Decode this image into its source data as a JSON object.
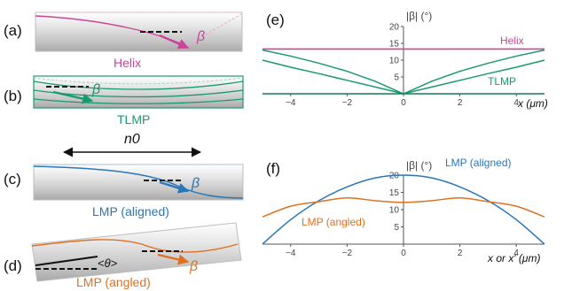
{
  "panel_labels": {
    "a": "(a)",
    "b": "(b)",
    "c": "(c)",
    "d": "(d)",
    "e": "(e)",
    "f": "(f)"
  },
  "left": {
    "helix_label": "Helix",
    "tlmp_label": "TLMP",
    "n0_label": "n0",
    "lmp_aligned_label": "LMP (aligned)",
    "lmp_angled_label": "LMP (angled)",
    "beta_symbol": "β",
    "theta_label": "<θ>"
  },
  "colors": {
    "helix": "#cc4499",
    "tlmp": "#1a9a6c",
    "lmp_aligned": "#2a76b8",
    "lmp_angled": "#e07020",
    "axis": "#555555",
    "tick_label": "#444444"
  },
  "chart_data": [
    {
      "type": "line",
      "panel": "(e)",
      "ylabel": "|β| (°)",
      "xlabel": "x (μm)",
      "xlim": [
        -5,
        5
      ],
      "ylim": [
        0,
        20
      ],
      "xticks": [
        -4,
        -2,
        0,
        2,
        4
      ],
      "yticks": [
        0,
        5,
        10,
        15,
        20
      ],
      "grid": false,
      "series": [
        {
          "name": "Helix",
          "color": "#cc4499",
          "x": [
            -5,
            -4,
            -3,
            -2,
            -1,
            0,
            1,
            2,
            3,
            4,
            5
          ],
          "y": [
            13.3,
            13.3,
            13.3,
            13.3,
            13.3,
            13.3,
            13.3,
            13.3,
            13.3,
            13.3,
            13.3
          ]
        },
        {
          "name": "TLMP",
          "color": "#1a9a6c",
          "x": [
            -5,
            -4,
            -3,
            -2,
            -1,
            0,
            1,
            2,
            3,
            4,
            5
          ],
          "y": [
            13.0,
            11.2,
            9.1,
            6.7,
            3.7,
            0,
            3.7,
            6.7,
            9.1,
            11.2,
            13.0
          ]
        },
        {
          "name": "",
          "color": "#1a9a6c",
          "x": [
            -5,
            -4,
            -3,
            -2,
            -1,
            0,
            1,
            2,
            3,
            4,
            5
          ],
          "y": [
            10.0,
            7.9,
            6.0,
            4.0,
            2.0,
            0,
            2.0,
            4.0,
            6.0,
            7.9,
            10.0
          ]
        },
        {
          "name": "",
          "color": "#137a55",
          "x": [
            -5,
            -4,
            -3,
            -2,
            -1,
            0,
            1,
            2,
            3,
            4,
            5
          ],
          "y": [
            0,
            0,
            0,
            0,
            0,
            0,
            0,
            0,
            0,
            0,
            0
          ]
        }
      ]
    },
    {
      "type": "line",
      "panel": "(f)",
      "ylabel": "|β| (°)",
      "xlabel": "x or x′ (μm)",
      "xlim": [
        -5,
        5
      ],
      "ylim": [
        0,
        20
      ],
      "xticks": [
        -4,
        -2,
        0,
        2,
        4
      ],
      "yticks": [
        0,
        5,
        10,
        15,
        20
      ],
      "grid": false,
      "series": [
        {
          "name": "LMP (aligned)",
          "color": "#2a76b8",
          "x": [
            -5,
            -4,
            -3,
            -2,
            -1,
            0,
            1,
            2,
            3,
            4,
            5
          ],
          "y": [
            0,
            7.1,
            12.6,
            16.6,
            19.2,
            20.0,
            19.2,
            16.6,
            12.6,
            7.1,
            0
          ]
        },
        {
          "name": "LMP (angled)",
          "color": "#e07020",
          "x": [
            -5,
            -4,
            -3,
            -2,
            -1,
            0,
            1,
            2,
            3,
            4,
            5
          ],
          "y": [
            7.9,
            11.0,
            12.3,
            13.4,
            12.6,
            12.1,
            12.6,
            13.4,
            12.3,
            11.0,
            7.9
          ]
        }
      ]
    }
  ]
}
